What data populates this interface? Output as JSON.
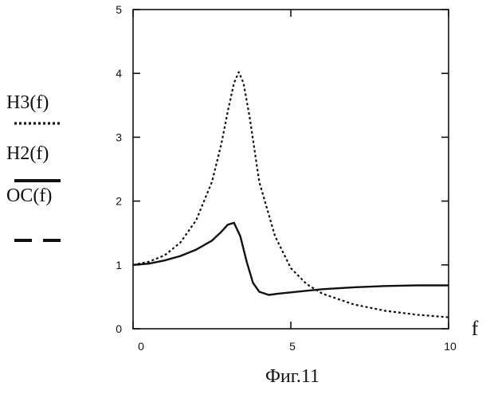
{
  "chart_data": {
    "type": "line",
    "xlabel": "f",
    "ylabel": "",
    "xlim": [
      0,
      10
    ],
    "ylim": [
      0,
      5
    ],
    "x_ticks": [
      0,
      5,
      10
    ],
    "y_ticks": [
      0,
      1,
      2,
      3,
      4,
      5
    ],
    "grid": false,
    "legend_position": "left",
    "caption": "Фиг.11",
    "series": [
      {
        "name": "H3(f)",
        "style": "dotted",
        "x": [
          0,
          0.5,
          1,
          1.5,
          2,
          2.5,
          2.8,
          3.0,
          3.2,
          3.35,
          3.5,
          3.7,
          4.0,
          4.5,
          5.0,
          5.5,
          6.0,
          7.0,
          8.0,
          9.0,
          10.0
        ],
        "y": [
          1.0,
          1.05,
          1.15,
          1.35,
          1.7,
          2.3,
          2.9,
          3.4,
          3.85,
          4.02,
          3.85,
          3.3,
          2.3,
          1.45,
          0.95,
          0.7,
          0.55,
          0.38,
          0.28,
          0.22,
          0.18
        ]
      },
      {
        "name": "H2(f)",
        "style": "solid",
        "x": [
          0,
          0.5,
          1,
          1.5,
          2,
          2.5,
          2.8,
          3.0,
          3.2,
          3.4,
          3.6,
          3.8,
          4.0,
          4.3,
          4.6,
          5.0,
          6.0,
          7.0,
          8.0,
          9.0,
          10.0
        ],
        "y": [
          1.0,
          1.02,
          1.07,
          1.14,
          1.24,
          1.38,
          1.52,
          1.63,
          1.66,
          1.45,
          1.05,
          0.72,
          0.58,
          0.53,
          0.55,
          0.57,
          0.62,
          0.65,
          0.67,
          0.68,
          0.68
        ]
      },
      {
        "name": "OC(f)",
        "style": "dashed",
        "x": [],
        "y": []
      }
    ]
  }
}
